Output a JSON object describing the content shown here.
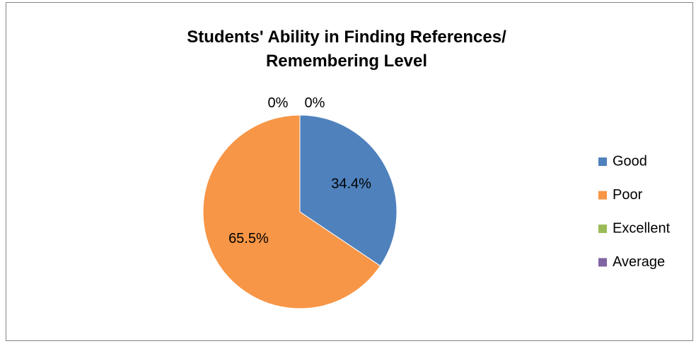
{
  "chart_data": {
    "type": "pie",
    "title": "Students' Ability in Finding References/ Remembering Level",
    "categories": [
      "Good",
      "Poor",
      "Excellent",
      "Average"
    ],
    "values": [
      34.4,
      65.5,
      0,
      0
    ],
    "value_labels": [
      "34.4%",
      "65.5%",
      "0%",
      "0%"
    ],
    "colors": [
      "#4f81bd",
      "#f79646",
      "#9bbb59",
      "#8064a2"
    ],
    "legend": "right"
  }
}
